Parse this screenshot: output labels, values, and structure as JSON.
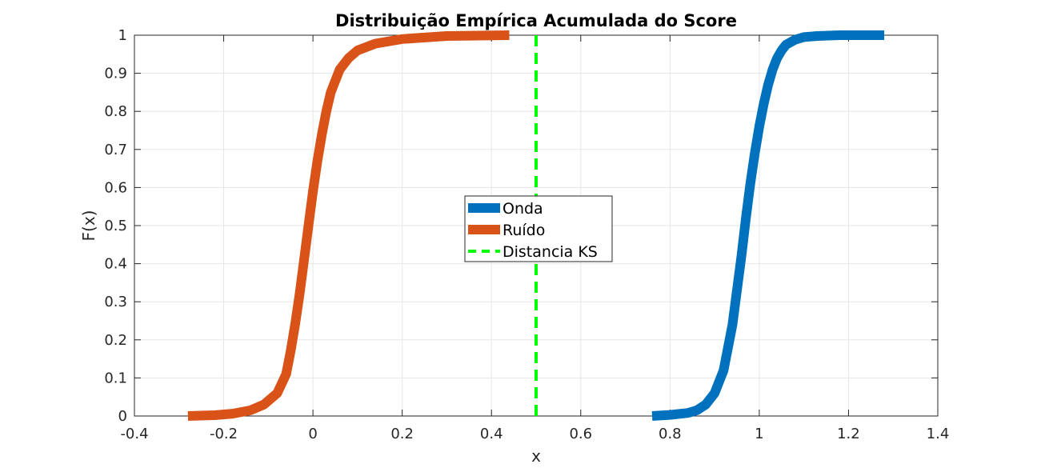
{
  "chart_data": {
    "type": "line",
    "title": "Distribuição Empírica Acumulada do Score",
    "xlabel": "x",
    "ylabel": "F(x)",
    "xlim": [
      -0.4,
      1.4
    ],
    "ylim": [
      0,
      1
    ],
    "xticks": [
      "-0.4",
      "-0.2",
      "0",
      "0.2",
      "0.4",
      "0.6",
      "0.8",
      "1",
      "1.2",
      "1.4"
    ],
    "yticks": [
      "0",
      "0.1",
      "0.2",
      "0.3",
      "0.4",
      "0.5",
      "0.6",
      "0.7",
      "0.8",
      "0.9",
      "1"
    ],
    "grid": true,
    "legend_position": "center",
    "series": [
      {
        "name": "Onda",
        "color": "#0072BD",
        "style": "solid",
        "x": [
          0.76,
          0.8,
          0.84,
          0.86,
          0.88,
          0.9,
          0.92,
          0.94,
          0.95,
          0.96,
          0.97,
          0.98,
          0.99,
          1.0,
          1.01,
          1.02,
          1.03,
          1.04,
          1.05,
          1.06,
          1.08,
          1.1,
          1.13,
          1.18,
          1.28
        ],
        "y": [
          0.0,
          0.003,
          0.008,
          0.015,
          0.03,
          0.06,
          0.12,
          0.24,
          0.33,
          0.42,
          0.52,
          0.61,
          0.69,
          0.76,
          0.82,
          0.87,
          0.91,
          0.94,
          0.96,
          0.975,
          0.988,
          0.995,
          0.998,
          1.0,
          1.0
        ]
      },
      {
        "name": "Ruído",
        "color": "#D95319",
        "style": "solid",
        "x": [
          -0.28,
          -0.22,
          -0.18,
          -0.14,
          -0.11,
          -0.08,
          -0.06,
          -0.05,
          -0.04,
          -0.03,
          -0.02,
          -0.01,
          0.0,
          0.01,
          0.02,
          0.03,
          0.04,
          0.05,
          0.06,
          0.08,
          0.1,
          0.14,
          0.2,
          0.3,
          0.44
        ],
        "y": [
          0.0,
          0.002,
          0.006,
          0.015,
          0.03,
          0.06,
          0.11,
          0.17,
          0.24,
          0.32,
          0.41,
          0.5,
          0.59,
          0.67,
          0.74,
          0.8,
          0.85,
          0.88,
          0.91,
          0.94,
          0.96,
          0.978,
          0.99,
          0.998,
          1.0
        ]
      },
      {
        "name": "Distancia KS",
        "color": "#00FF00",
        "style": "dashed",
        "x": [
          0.5,
          0.5
        ],
        "y": [
          0.0,
          1.0
        ]
      }
    ]
  }
}
